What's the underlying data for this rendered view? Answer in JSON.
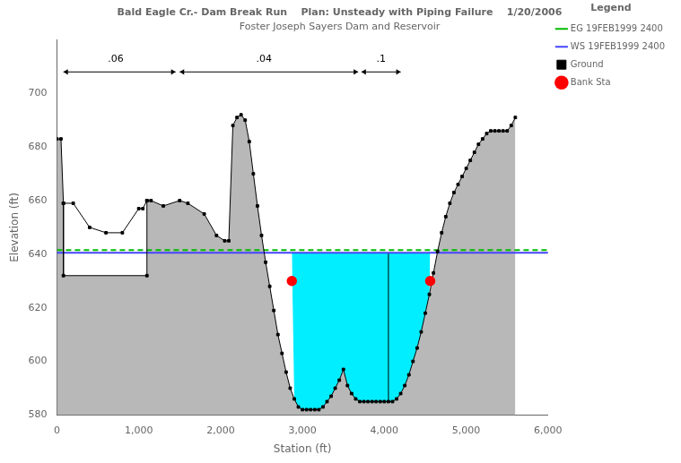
{
  "chart_data": {
    "type": "line",
    "title": "Bald Eagle Cr.- Dam Break Run    Plan: Unsteady with Piping Failure    1/20/2006",
    "subtitle": "Foster Joseph Sayers Dam and Reservoir",
    "xlabel": "Station (ft)",
    "ylabel": "Elevation (ft)",
    "xlim": [
      0,
      6000
    ],
    "ylim": [
      580,
      720
    ],
    "xticks": [
      0,
      1000,
      2000,
      3000,
      4000,
      5000,
      6000
    ],
    "yticks": [
      580,
      600,
      620,
      640,
      660,
      680,
      700
    ],
    "grid": false,
    "legend": "right",
    "legend_title": "Legend",
    "series": [
      {
        "type": "area",
        "color": "#b8b8b8",
        "base": 580,
        "x": [
          0,
          50,
          80,
          200,
          400,
          600,
          800,
          1000,
          1050,
          1100,
          1150,
          1300,
          1500,
          1600,
          1800,
          1950,
          2050,
          2100,
          2150,
          2200,
          2250,
          2300,
          2350,
          2400,
          2450,
          2500,
          2550,
          2600,
          2650,
          2700,
          2750,
          2800,
          2850,
          2900,
          2950,
          3000,
          3050,
          3100,
          3150,
          3200,
          3250,
          3300,
          3350,
          3400,
          3450,
          3500,
          3550,
          3600,
          3650,
          3700,
          3750,
          3800,
          3850,
          3900,
          3950,
          4000,
          4050,
          4100,
          4150,
          4200,
          4250,
          4300,
          4350,
          4400,
          4450,
          4500,
          4550,
          4600,
          4650,
          4700,
          4750,
          4800,
          4850,
          4900,
          4950,
          5000,
          5050,
          5100,
          5150,
          5200,
          5250,
          5300,
          5350,
          5400,
          5450,
          5500,
          5550,
          5600
        ],
        "values": [
          683,
          683,
          659,
          659,
          650,
          648,
          648,
          657,
          657,
          660,
          660,
          658,
          660,
          659,
          655,
          647,
          645,
          645,
          688,
          691,
          692,
          690,
          682,
          670,
          658,
          647,
          637,
          628,
          619,
          610,
          603,
          596,
          590,
          586,
          583,
          582,
          582,
          582,
          582,
          582,
          583,
          585,
          587,
          590,
          593,
          597,
          591,
          588,
          586,
          585,
          585,
          585,
          585,
          585,
          585,
          585,
          585,
          585,
          586,
          588,
          591,
          595,
          600,
          605,
          611,
          618,
          625,
          633,
          641,
          648,
          654,
          659,
          663,
          666,
          669,
          672,
          675,
          678,
          681,
          683,
          685,
          686,
          686,
          686,
          686,
          686,
          688,
          691
        ]
      },
      {
        "type": "polygon",
        "color": "#ffffff",
        "x": [
          80,
          80,
          1100,
          1100
        ],
        "values": [
          659,
          632,
          632,
          660
        ]
      },
      {
        "type": "area",
        "color": "#00eeff",
        "base": 640.5,
        "x": [
          2870,
          2900,
          2950,
          3000,
          3050,
          3100,
          3150,
          3200,
          3250,
          3300,
          3350,
          3400,
          3450,
          3500,
          3550,
          3600,
          3650,
          3700,
          3750,
          3800,
          3850,
          3900,
          3950,
          4000,
          4050,
          4100,
          4150,
          4200,
          4250,
          4300,
          4350,
          4400,
          4450,
          4500,
          4550,
          4560
        ],
        "values": [
          640.5,
          586,
          583,
          582,
          582,
          582,
          582,
          582,
          583,
          585,
          587,
          590,
          593,
          597,
          591,
          588,
          586,
          585,
          585,
          585,
          585,
          585,
          585,
          585,
          585,
          585,
          586,
          588,
          591,
          595,
          600,
          605,
          611,
          618,
          625,
          640.5
        ]
      },
      {
        "type": "line",
        "color": "#000000",
        "line_style": "solid",
        "x": [
          4050,
          4050
        ],
        "values": [
          585,
          640.5
        ]
      },
      {
        "name": "EG 19FEB1999 2400",
        "type": "hline",
        "color": "#00bb00",
        "line_style": "dashed",
        "values": [
          641.5
        ]
      },
      {
        "name": "WS 19FEB1999 2400",
        "type": "hline",
        "color": "#4444ff",
        "line_style": "solid",
        "values": [
          640.5
        ]
      },
      {
        "name": "Ground",
        "type": "line",
        "color": "#000000",
        "line_style": "solid",
        "marker": "square",
        "x": [
          0,
          50,
          80,
          200,
          400,
          600,
          800,
          1000,
          1050,
          1100,
          1150,
          1300,
          1500,
          1600,
          1800,
          1950,
          2050,
          2100,
          2150,
          2200,
          2250,
          2300,
          2350,
          2400,
          2450,
          2500,
          2550,
          2600,
          2650,
          2700,
          2750,
          2800,
          2850,
          2900,
          2950,
          3000,
          3050,
          3100,
          3150,
          3200,
          3250,
          3300,
          3350,
          3400,
          3450,
          3500,
          3550,
          3600,
          3650,
          3700,
          3750,
          3800,
          3850,
          3900,
          3950,
          4000,
          4050,
          4100,
          4150,
          4200,
          4250,
          4300,
          4350,
          4400,
          4450,
          4500,
          4550,
          4600,
          4650,
          4700,
          4750,
          4800,
          4850,
          4900,
          4950,
          5000,
          5050,
          5100,
          5150,
          5200,
          5250,
          5300,
          5350,
          5400,
          5450,
          5500,
          5550,
          5600
        ],
        "values": [
          683,
          683,
          659,
          659,
          650,
          648,
          648,
          657,
          657,
          660,
          660,
          658,
          660,
          659,
          655,
          647,
          645,
          645,
          688,
          691,
          692,
          690,
          682,
          670,
          658,
          647,
          637,
          628,
          619,
          610,
          603,
          596,
          590,
          586,
          583,
          582,
          582,
          582,
          582,
          582,
          583,
          585,
          587,
          590,
          593,
          597,
          591,
          588,
          586,
          585,
          585,
          585,
          585,
          585,
          585,
          585,
          585,
          585,
          586,
          588,
          591,
          595,
          600,
          605,
          611,
          618,
          625,
          633,
          641,
          648,
          654,
          659,
          663,
          666,
          669,
          672,
          675,
          678,
          681,
          683,
          685,
          686,
          686,
          686,
          686,
          686,
          688,
          691
        ]
      },
      {
        "type": "line",
        "color": "#000000",
        "line_style": "solid",
        "marker": "square",
        "x": [
          80,
          80,
          1100,
          1100
        ],
        "values": [
          659,
          632,
          632,
          660
        ]
      },
      {
        "name": "Bank Sta",
        "type": "scatter",
        "color": "#ff0000",
        "marker": "circle",
        "x": [
          2870,
          4560
        ],
        "values": [
          630,
          630
        ]
      }
    ],
    "annotations": [
      {
        "text": ".06",
        "x": 720,
        "y": 711,
        "arrow_x": [
          80,
          1450
        ],
        "arrow_y": 708
      },
      {
        "text": ".04",
        "x": 2530,
        "y": 711,
        "arrow_x": [
          1500,
          3680
        ],
        "arrow_y": 708
      },
      {
        "text": ".1",
        "x": 3960,
        "y": 711,
        "arrow_x": [
          3720,
          4200
        ],
        "arrow_y": 708
      }
    ]
  }
}
